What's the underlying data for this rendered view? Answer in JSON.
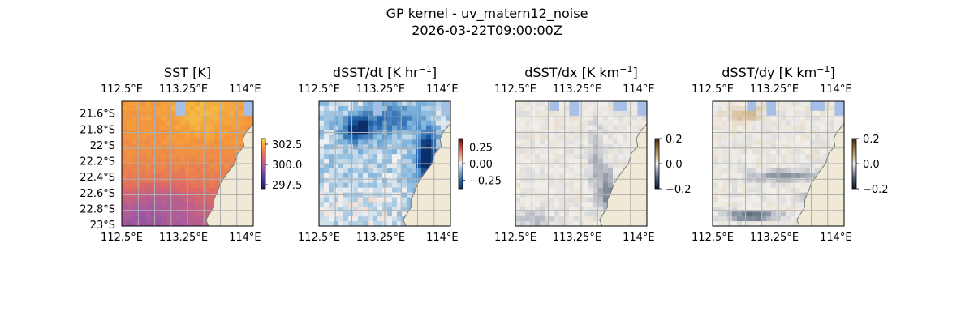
{
  "figure": {
    "title_line1": "GP kernel - uv_matern12_noise",
    "title_line2": "2026-03-22T09:00:00Z"
  },
  "colors": {
    "land": "#efe9d6",
    "ocean_nodata": "#a5bfe6",
    "coast": "#7a7a7a",
    "grid": "#b0b0b0",
    "spine": "#000000"
  },
  "chart_data": [
    {
      "type": "heatmap",
      "title": "SST [K]",
      "colormap": "thermal",
      "xlim": [
        112.5,
        114.1
      ],
      "ylim": [
        -23.02,
        -21.45
      ],
      "x_ticks": [
        112.5,
        113.25,
        114.0
      ],
      "x_tick_labels": [
        "112.5°E",
        "113.25°E",
        "114°E"
      ],
      "y_ticks": [
        -21.6,
        -21.8,
        -22.0,
        -22.2,
        -22.4,
        -22.6,
        -22.8,
        -23.0
      ],
      "y_tick_labels": [
        "21.6°S",
        "21.8°S",
        "22°S",
        "22.2°S",
        "22.4°S",
        "22.6°S",
        "22.8°S",
        "23°S"
      ],
      "colorbar": {
        "vmin": 297.0,
        "vmax": 303.2,
        "ticks": [
          297.5,
          300.0,
          302.5
        ],
        "tick_labels": [
          "297.5",
          "300.0",
          "302.5"
        ]
      },
      "field": "sst",
      "grid": true
    },
    {
      "type": "heatmap",
      "title": "dSST/dt [K hr",
      "title_sup": "−1",
      "title_end": "]",
      "colormap": "diverging",
      "xlim": [
        112.5,
        114.1
      ],
      "ylim": [
        -23.02,
        -21.45
      ],
      "x_ticks": [
        112.5,
        113.25,
        114.0
      ],
      "x_tick_labels": [
        "112.5°E",
        "113.25°E",
        "114°E"
      ],
      "colorbar": {
        "vmin": -0.38,
        "vmax": 0.38,
        "ticks": [
          0.25,
          0.0,
          -0.25
        ],
        "tick_labels": [
          "0.25",
          "0.00",
          "−0.25"
        ]
      },
      "field": "dsdt",
      "grid": true
    },
    {
      "type": "heatmap",
      "title": "dSST/dx [K km",
      "title_sup": "−1",
      "title_end": "]",
      "colormap": "gray-brown",
      "xlim": [
        112.5,
        114.1
      ],
      "ylim": [
        -23.02,
        -21.45
      ],
      "x_ticks": [
        112.5,
        113.25,
        114.0
      ],
      "x_tick_labels": [
        "112.5°E",
        "113.25°E",
        "114°E"
      ],
      "colorbar": {
        "vmin": -0.2,
        "vmax": 0.2,
        "ticks": [
          0.2,
          0.0,
          -0.2
        ],
        "tick_labels": [
          "0.2",
          "0.0",
          "−0.2"
        ]
      },
      "field": "dsdx",
      "grid": true
    },
    {
      "type": "heatmap",
      "title": "dSST/dy [K km",
      "title_sup": "−1",
      "title_end": "]",
      "colormap": "gray-brown",
      "xlim": [
        112.5,
        114.1
      ],
      "ylim": [
        -23.02,
        -21.45
      ],
      "x_ticks": [
        112.5,
        113.25,
        114.0
      ],
      "x_tick_labels": [
        "112.5°E",
        "113.25°E",
        "114°E"
      ],
      "colorbar": {
        "vmin": -0.2,
        "vmax": 0.2,
        "ticks": [
          0.2,
          0.0,
          -0.2
        ],
        "tick_labels": [
          "0.2",
          "0.0",
          "−0.2"
        ]
      },
      "field": "dsdy",
      "grid": true
    }
  ]
}
